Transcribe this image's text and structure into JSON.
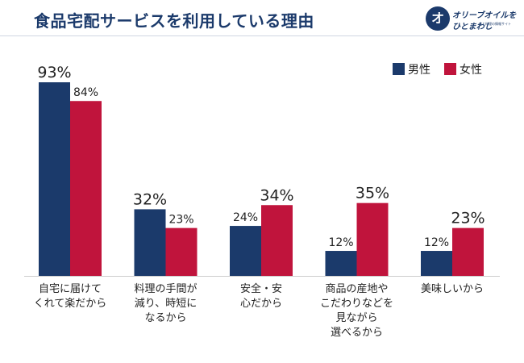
{
  "header": {
    "title": "食品宅配サービスを利用している理由",
    "logo": {
      "mark": "オ",
      "line1": "オリーブオイルを",
      "line2": "ひとまわし",
      "line3": "食と料理の情報サイト"
    }
  },
  "colors": {
    "male": "#1b3a6b",
    "female": "#c0143c"
  },
  "chart_data": {
    "type": "bar",
    "title": "食品宅配サービスを利用している理由",
    "categories": [
      "自宅に届けて\nくれて楽だから",
      "料理の手間が\n減り、時短に\nなるから",
      "安全・安\n心だから",
      "商品の産地や\nこだわりなどを\n見ながら\n選べるから",
      "美味しいから"
    ],
    "series": [
      {
        "name": "男性",
        "values": [
          93,
          32,
          24,
          12,
          12
        ],
        "value_labels": [
          "93%",
          "32%",
          "24%",
          "12%",
          "12%"
        ]
      },
      {
        "name": "女性",
        "values": [
          84,
          23,
          34,
          35,
          23
        ],
        "value_labels": [
          "84%",
          "23%",
          "34%",
          "35%",
          "23%"
        ]
      }
    ],
    "ylim": [
      0,
      100
    ],
    "legend_position": "top-right",
    "grid": false
  }
}
